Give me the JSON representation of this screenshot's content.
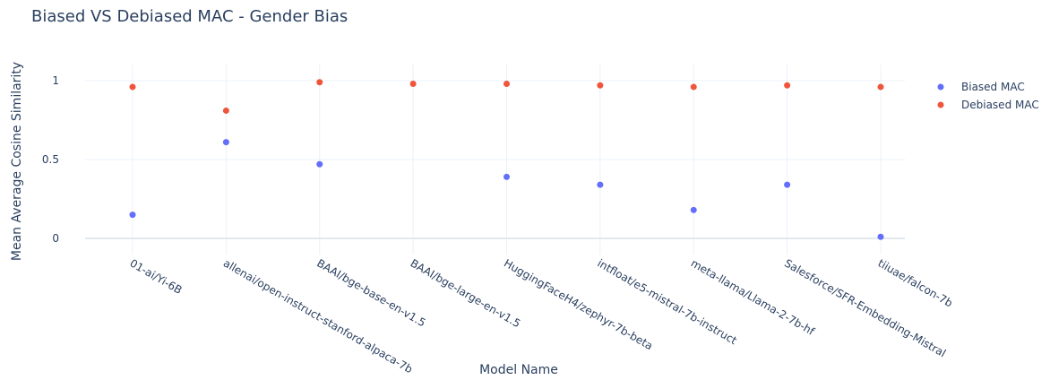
{
  "chart_data": {
    "type": "scatter",
    "title": "Biased VS Debiased MAC - Gender Bias",
    "xlabel": "Model Name",
    "ylabel": "Mean Average Cosine Similarity",
    "ylim": [
      -0.05,
      1.05
    ],
    "y_ticks": [
      "0",
      "0.5",
      "1"
    ],
    "grid": true,
    "legend_position": "top-right",
    "categories": [
      "01-ai/Yi-6B",
      "allenai/open-instruct-stanford-alpaca-7b",
      "BAAI/bge-base-en-v1.5",
      "BAAI/bge-large-en-v1.5",
      "HuggingFaceH4/zephyr-7b-beta",
      "intfloat/e5-mistral-7b-instruct",
      "meta-llama/Llama-2-7b-hf",
      "Salesforce/SFR-Embedding-Mistral",
      "tiiuae/falcon-7b"
    ],
    "series": [
      {
        "name": "Biased MAC",
        "color": "#636efa",
        "values": [
          0.15,
          0.61,
          0.47,
          null,
          0.39,
          0.34,
          0.18,
          0.34,
          0.01
        ]
      },
      {
        "name": "Debiased MAC",
        "color": "#ef553b",
        "values": [
          0.96,
          0.81,
          0.99,
          0.98,
          0.98,
          0.97,
          0.96,
          0.97,
          0.96
        ]
      }
    ]
  }
}
